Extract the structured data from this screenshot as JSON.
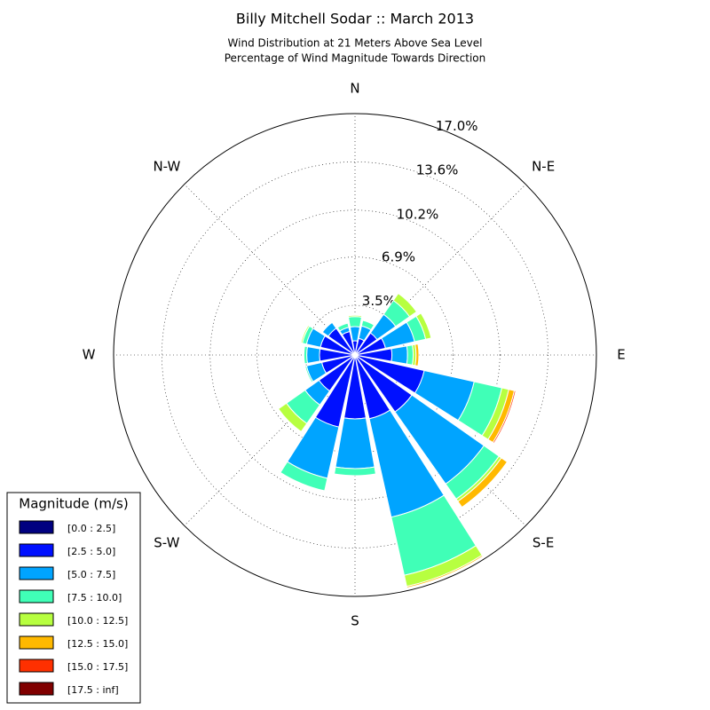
{
  "chart_data": {
    "type": "windrose",
    "title": "Billy Mitchell Sodar :: March 2013",
    "subtitle": [
      "Wind Distribution at 21 Meters Above Sea Level",
      "Percentage of Wind Magnitude Towards Direction"
    ],
    "categories": [
      "N",
      null,
      "N-E",
      null,
      "E",
      null,
      "S-E",
      null,
      "S",
      null,
      "S-W",
      null,
      "W",
      null,
      "N-W",
      null
    ],
    "rlim": [
      0,
      17.0
    ],
    "rticks": [
      {
        "value": 3.5,
        "label": "3.5%"
      },
      {
        "value": 6.9,
        "label": "6.9%"
      },
      {
        "value": 10.2,
        "label": "10.2%"
      },
      {
        "value": 13.6,
        "label": "13.6%"
      },
      {
        "value": 17.0,
        "label": "17.0%"
      }
    ],
    "grid": true,
    "legend_title": "Magnitude (m/s)",
    "legend_position": "lower left",
    "series": [
      {
        "name": "[0.0 : 2.5]",
        "color": "#000080",
        "values": [
          0.1,
          0.1,
          0.1,
          0.1,
          0.1,
          0.2,
          0.2,
          0.2,
          0.2,
          0.2,
          0.1,
          0.1,
          0.1,
          0.1,
          0.1,
          0.1
        ]
      },
      {
        "name": "[2.5 : 5.0]",
        "color": "#0010ff",
        "values": [
          0.9,
          1.1,
          1.8,
          2.1,
          2.5,
          4.8,
          4.7,
          4.4,
          4.3,
          5.0,
          3.0,
          2.3,
          2.4,
          2.4,
          2.2,
          1.6
        ]
      },
      {
        "name": "[5.0 : 7.5]",
        "color": "#00a4ff",
        "values": [
          1.0,
          0.9,
          1.6,
          2.1,
          1.1,
          3.6,
          6.2,
          7.1,
          3.5,
          3.7,
          1.2,
          1.1,
          0.9,
          1.0,
          0.5,
          0.3
        ]
      },
      {
        "name": "[7.5 : 10.0]",
        "color": "#40ffb7",
        "values": [
          0.7,
          0.4,
          1.2,
          0.8,
          0.4,
          2.0,
          1.3,
          4.2,
          0.5,
          0.9,
          1.6,
          0.1,
          0.2,
          0.3,
          0,
          0.3
        ]
      },
      {
        "name": "[10.0 : 12.5]",
        "color": "#b7ff40",
        "values": [
          0.1,
          0,
          0.6,
          0.4,
          0.2,
          0.5,
          0.2,
          0.8,
          0,
          0,
          0.7,
          0,
          0,
          0.1,
          0,
          0
        ]
      },
      {
        "name": "[12.5 : 15.0]",
        "color": "#ffb900",
        "values": [
          0,
          0,
          0,
          0,
          0.2,
          0.4,
          0.5,
          0.1,
          0,
          0,
          0,
          0,
          0,
          0,
          0,
          0
        ]
      },
      {
        "name": "[15.0 : 17.5]",
        "color": "#ff3000",
        "values": [
          0,
          0,
          0,
          0,
          0,
          0.1,
          0,
          0,
          0,
          0,
          0,
          0,
          0,
          0,
          0,
          0
        ]
      },
      {
        "name": "[17.5 : inf]",
        "color": "#800000",
        "values": [
          0,
          0,
          0,
          0,
          0,
          0,
          0,
          0,
          0,
          0,
          0,
          0,
          0,
          0,
          0,
          0
        ]
      }
    ]
  }
}
